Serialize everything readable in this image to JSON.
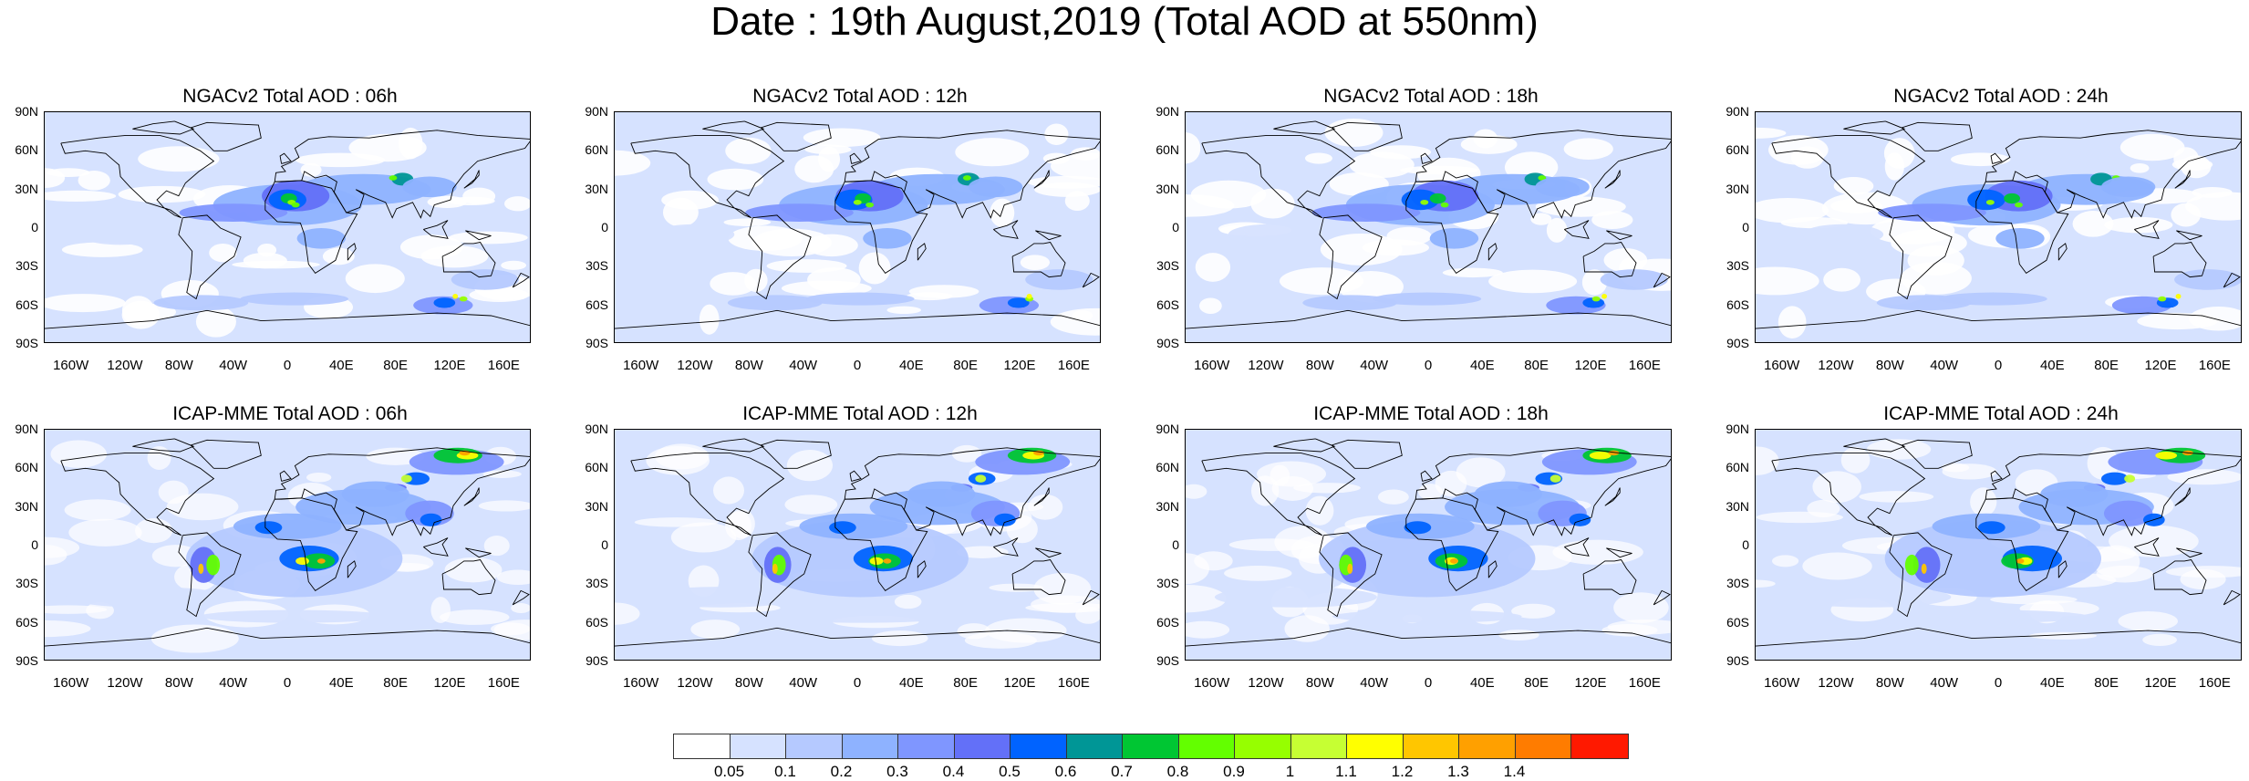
{
  "title": "Date : 19th August,2019 (Total AOD at 550nm)",
  "lat_labels": [
    "90N",
    "60N",
    "30N",
    "0",
    "30S",
    "60S",
    "90S"
  ],
  "lon_labels": [
    "160W",
    "120W",
    "80W",
    "40W",
    "0",
    "40E",
    "80E",
    "120E",
    "160E"
  ],
  "panels": [
    {
      "title": "NGACv2 Total AOD : 06h",
      "model": "ngac"
    },
    {
      "title": "NGACv2 Total AOD : 12h",
      "model": "ngac"
    },
    {
      "title": "NGACv2 Total AOD : 18h",
      "model": "ngac"
    },
    {
      "title": "NGACv2 Total AOD : 24h",
      "model": "ngac"
    },
    {
      "title": "ICAP-MME Total AOD : 06h",
      "model": "icap"
    },
    {
      "title": "ICAP-MME Total AOD : 12h",
      "model": "icap"
    },
    {
      "title": "ICAP-MME Total AOD : 18h",
      "model": "icap"
    },
    {
      "title": "ICAP-MME Total AOD : 24h",
      "model": "icap"
    }
  ],
  "colorbar": {
    "colors": [
      "#ffffff",
      "#d6e2ff",
      "#b5c9ff",
      "#8eb2ff",
      "#7f96ff",
      "#6370f8",
      "#0063ff",
      "#009696",
      "#00c633",
      "#63ff00",
      "#96ff00",
      "#c6ff33",
      "#ffff00",
      "#ffc600",
      "#ffa000",
      "#ff7c00",
      "#ff1900"
    ],
    "labels": [
      "0.05",
      "0.1",
      "0.2",
      "0.3",
      "0.4",
      "0.5",
      "0.6",
      "0.7",
      "0.8",
      "0.9",
      "1",
      "1.1",
      "1.2",
      "1.3",
      "1.4"
    ]
  }
}
